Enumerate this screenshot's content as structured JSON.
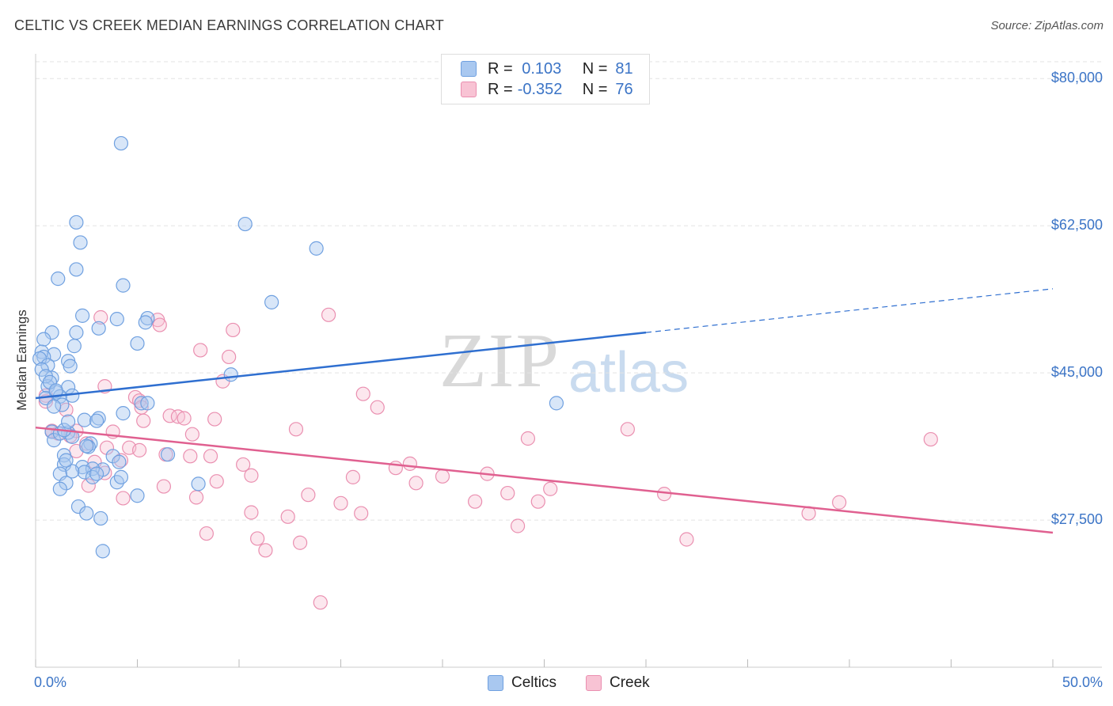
{
  "header": {
    "title": "CELTIC VS CREEK MEDIAN EARNINGS CORRELATION CHART",
    "source": "Source: ZipAtlas.com"
  },
  "watermark": {
    "zip": "ZIP",
    "atlas": "atlas"
  },
  "legend": {
    "rows": [
      {
        "r_label": "R =",
        "r_value": " 0.103",
        "n_label": "N =",
        "n_value": "81",
        "color": "#a9c8f0",
        "border": "#6fa0e0"
      },
      {
        "r_label": "R =",
        "r_value": "-0.352",
        "n_label": "N =",
        "n_value": "76",
        "color": "#f8c3d4",
        "border": "#ea8fb0"
      }
    ],
    "bottom": [
      {
        "label": "Celtics",
        "color": "#a9c8f0",
        "border": "#6fa0e0"
      },
      {
        "label": "Creek",
        "color": "#f8c3d4",
        "border": "#ea8fb0"
      }
    ]
  },
  "chart_data": {
    "type": "scatter",
    "title": "CELTIC VS CREEK MEDIAN EARNINGS CORRELATION CHART",
    "xlabel": "",
    "ylabel": "Median Earnings",
    "xlim": [
      0,
      50
    ],
    "ylim": [
      10000,
      82000
    ],
    "x_tick_labels": [
      "0.0%",
      "50.0%"
    ],
    "y_ticks": [
      27500,
      45000,
      62500,
      80000
    ],
    "y_tick_labels": [
      "$27,500",
      "$45,000",
      "$62,500",
      "$80,000"
    ],
    "grid": "dashed horizontal",
    "legend_position": "top-center",
    "colors": {
      "celtics": "#6fa0e0",
      "creek": "#ea8fb0",
      "celtics_line": "#2f6fd0",
      "creek_line": "#e06090"
    },
    "series": [
      {
        "name": "Celtics",
        "trend": {
          "x0": 0,
          "y0": 42000,
          "x1": 30,
          "y1": 49800,
          "dashed_to_x": 50,
          "dashed_to_y": 55000
        },
        "points": [
          [
            4.2,
            72300
          ],
          [
            2.0,
            62900
          ],
          [
            10.3,
            62700
          ],
          [
            2.2,
            60500
          ],
          [
            13.8,
            59800
          ],
          [
            2.0,
            57300
          ],
          [
            1.1,
            56200
          ],
          [
            4.3,
            55400
          ],
          [
            11.6,
            53400
          ],
          [
            2.3,
            51800
          ],
          [
            4.0,
            51400
          ],
          [
            5.5,
            51500
          ],
          [
            5.4,
            51000
          ],
          [
            3.1,
            50300
          ],
          [
            0.8,
            49800
          ],
          [
            2.0,
            49800
          ],
          [
            0.4,
            49000
          ],
          [
            5.0,
            48500
          ],
          [
            1.9,
            48200
          ],
          [
            0.3,
            47500
          ],
          [
            0.9,
            47200
          ],
          [
            0.4,
            46900
          ],
          [
            0.2,
            46700
          ],
          [
            1.6,
            46400
          ],
          [
            0.6,
            45900
          ],
          [
            1.7,
            45800
          ],
          [
            0.3,
            45400
          ],
          [
            9.6,
            44800
          ],
          [
            0.8,
            44400
          ],
          [
            0.6,
            43400
          ],
          [
            1.6,
            43300
          ],
          [
            1.0,
            42700
          ],
          [
            1.8,
            42300
          ],
          [
            1.2,
            42200
          ],
          [
            0.5,
            42000
          ],
          [
            5.2,
            41400
          ],
          [
            5.5,
            41400
          ],
          [
            1.3,
            41200
          ],
          [
            0.9,
            41000
          ],
          [
            25.6,
            41400
          ],
          [
            4.3,
            40200
          ],
          [
            3.1,
            39600
          ],
          [
            2.4,
            39400
          ],
          [
            3.0,
            39300
          ],
          [
            0.8,
            38000
          ],
          [
            1.6,
            37900
          ],
          [
            1.8,
            37400
          ],
          [
            0.9,
            37000
          ],
          [
            2.7,
            36600
          ],
          [
            2.6,
            36200
          ],
          [
            1.4,
            35200
          ],
          [
            3.8,
            35100
          ],
          [
            4.1,
            34400
          ],
          [
            1.4,
            34100
          ],
          [
            2.3,
            33800
          ],
          [
            3.3,
            33500
          ],
          [
            2.8,
            33600
          ],
          [
            2.4,
            33200
          ],
          [
            1.8,
            33300
          ],
          [
            1.2,
            33000
          ],
          [
            2.8,
            32600
          ],
          [
            4.0,
            32000
          ],
          [
            1.5,
            31900
          ],
          [
            8.0,
            31800
          ],
          [
            1.2,
            31200
          ],
          [
            5.0,
            30400
          ],
          [
            2.1,
            29100
          ],
          [
            2.5,
            28300
          ],
          [
            3.2,
            27700
          ],
          [
            3.3,
            23800
          ],
          [
            4.2,
            32600
          ],
          [
            1.5,
            34600
          ],
          [
            3.0,
            33000
          ],
          [
            1.2,
            37800
          ],
          [
            6.5,
            35300
          ],
          [
            1.4,
            38200
          ],
          [
            0.5,
            44600
          ],
          [
            0.7,
            43900
          ],
          [
            2.5,
            36300
          ],
          [
            1.0,
            42900
          ],
          [
            1.6,
            39200
          ]
        ]
      },
      {
        "name": "Creek",
        "trend": {
          "x0": 0,
          "y0": 38500,
          "x1": 50,
          "y1": 26000
        },
        "points": [
          [
            14.4,
            51900
          ],
          [
            3.2,
            51600
          ],
          [
            6.0,
            51300
          ],
          [
            6.1,
            50700
          ],
          [
            9.7,
            50100
          ],
          [
            8.1,
            47700
          ],
          [
            9.5,
            46900
          ],
          [
            3.4,
            43400
          ],
          [
            16.1,
            42500
          ],
          [
            0.5,
            42300
          ],
          [
            4.9,
            42100
          ],
          [
            5.1,
            41700
          ],
          [
            0.5,
            41600
          ],
          [
            16.8,
            40900
          ],
          [
            1.5,
            40600
          ],
          [
            6.6,
            39900
          ],
          [
            7.0,
            39800
          ],
          [
            7.3,
            39600
          ],
          [
            8.8,
            39500
          ],
          [
            5.3,
            39300
          ],
          [
            12.8,
            38300
          ],
          [
            29.1,
            38300
          ],
          [
            2.0,
            38100
          ],
          [
            3.8,
            38000
          ],
          [
            0.8,
            38000
          ],
          [
            7.7,
            37700
          ],
          [
            1.7,
            37500
          ],
          [
            24.2,
            37200
          ],
          [
            44.0,
            37100
          ],
          [
            2.5,
            36600
          ],
          [
            3.5,
            36100
          ],
          [
            4.6,
            36100
          ],
          [
            5.1,
            35800
          ],
          [
            2.0,
            35700
          ],
          [
            6.4,
            35300
          ],
          [
            7.6,
            35100
          ],
          [
            8.6,
            35100
          ],
          [
            4.2,
            34600
          ],
          [
            10.2,
            34100
          ],
          [
            18.4,
            34200
          ],
          [
            17.7,
            33700
          ],
          [
            3.4,
            33100
          ],
          [
            10.6,
            32800
          ],
          [
            20.0,
            32700
          ],
          [
            22.2,
            33000
          ],
          [
            15.6,
            32600
          ],
          [
            8.9,
            32100
          ],
          [
            18.7,
            31900
          ],
          [
            2.6,
            31600
          ],
          [
            6.3,
            31500
          ],
          [
            25.3,
            31200
          ],
          [
            23.2,
            30700
          ],
          [
            13.4,
            30500
          ],
          [
            30.9,
            30600
          ],
          [
            7.9,
            30200
          ],
          [
            4.3,
            30100
          ],
          [
            21.6,
            29700
          ],
          [
            15.0,
            29500
          ],
          [
            24.7,
            29700
          ],
          [
            39.5,
            29600
          ],
          [
            10.6,
            28400
          ],
          [
            16.0,
            28300
          ],
          [
            12.4,
            27900
          ],
          [
            38.0,
            28300
          ],
          [
            23.7,
            26800
          ],
          [
            8.4,
            25900
          ],
          [
            10.9,
            25300
          ],
          [
            32.0,
            25200
          ],
          [
            13.0,
            24800
          ],
          [
            11.3,
            23900
          ],
          [
            14.0,
            17700
          ],
          [
            1.1,
            37800
          ],
          [
            2.9,
            34400
          ],
          [
            5.2,
            40900
          ],
          [
            0.8,
            38100
          ],
          [
            9.2,
            44000
          ]
        ]
      }
    ]
  }
}
